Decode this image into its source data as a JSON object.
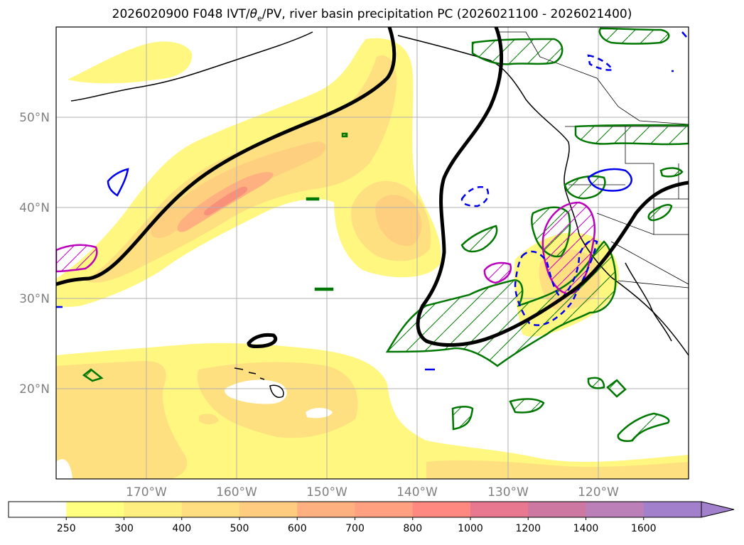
{
  "title": {
    "prefix": "2026020900 F048 IVT/",
    "theta_symbol": "θ",
    "theta_sub": "e",
    "suffix": "/PV, river basin precipitation PC (2026021100 - 2026021400)"
  },
  "map": {
    "lat_labels": [
      "50°N",
      "40°N",
      "30°N",
      "20°N"
    ],
    "lon_labels": [
      "170°W",
      "160°W",
      "150°W",
      "140°W",
      "130°W",
      "120°W"
    ],
    "grid": true
  },
  "colorbar": {
    "levels": [
      "250",
      "300",
      "400",
      "500",
      "600",
      "700",
      "800",
      "1000",
      "1200",
      "1400",
      "1600"
    ],
    "colors": [
      "#ffffff",
      "#ffff80",
      "#ffee80",
      "#ffdd80",
      "#ffcc80",
      "#ffb080",
      "#ffa080",
      "#ff8880",
      "#e87890",
      "#cc78a0",
      "#bb80b8",
      "#a380cc"
    ],
    "extend": "max"
  },
  "contour_colors": {
    "ivt_fill": [
      "#fff780",
      "#ffe080",
      "#ffcf80",
      "#ffb080",
      "#f8907a"
    ],
    "theta_e_line": "#000000",
    "pv_line": "#0000ee",
    "precip_pc_hatch": "#007700",
    "precip_pc_high": "#bb00bb"
  }
}
